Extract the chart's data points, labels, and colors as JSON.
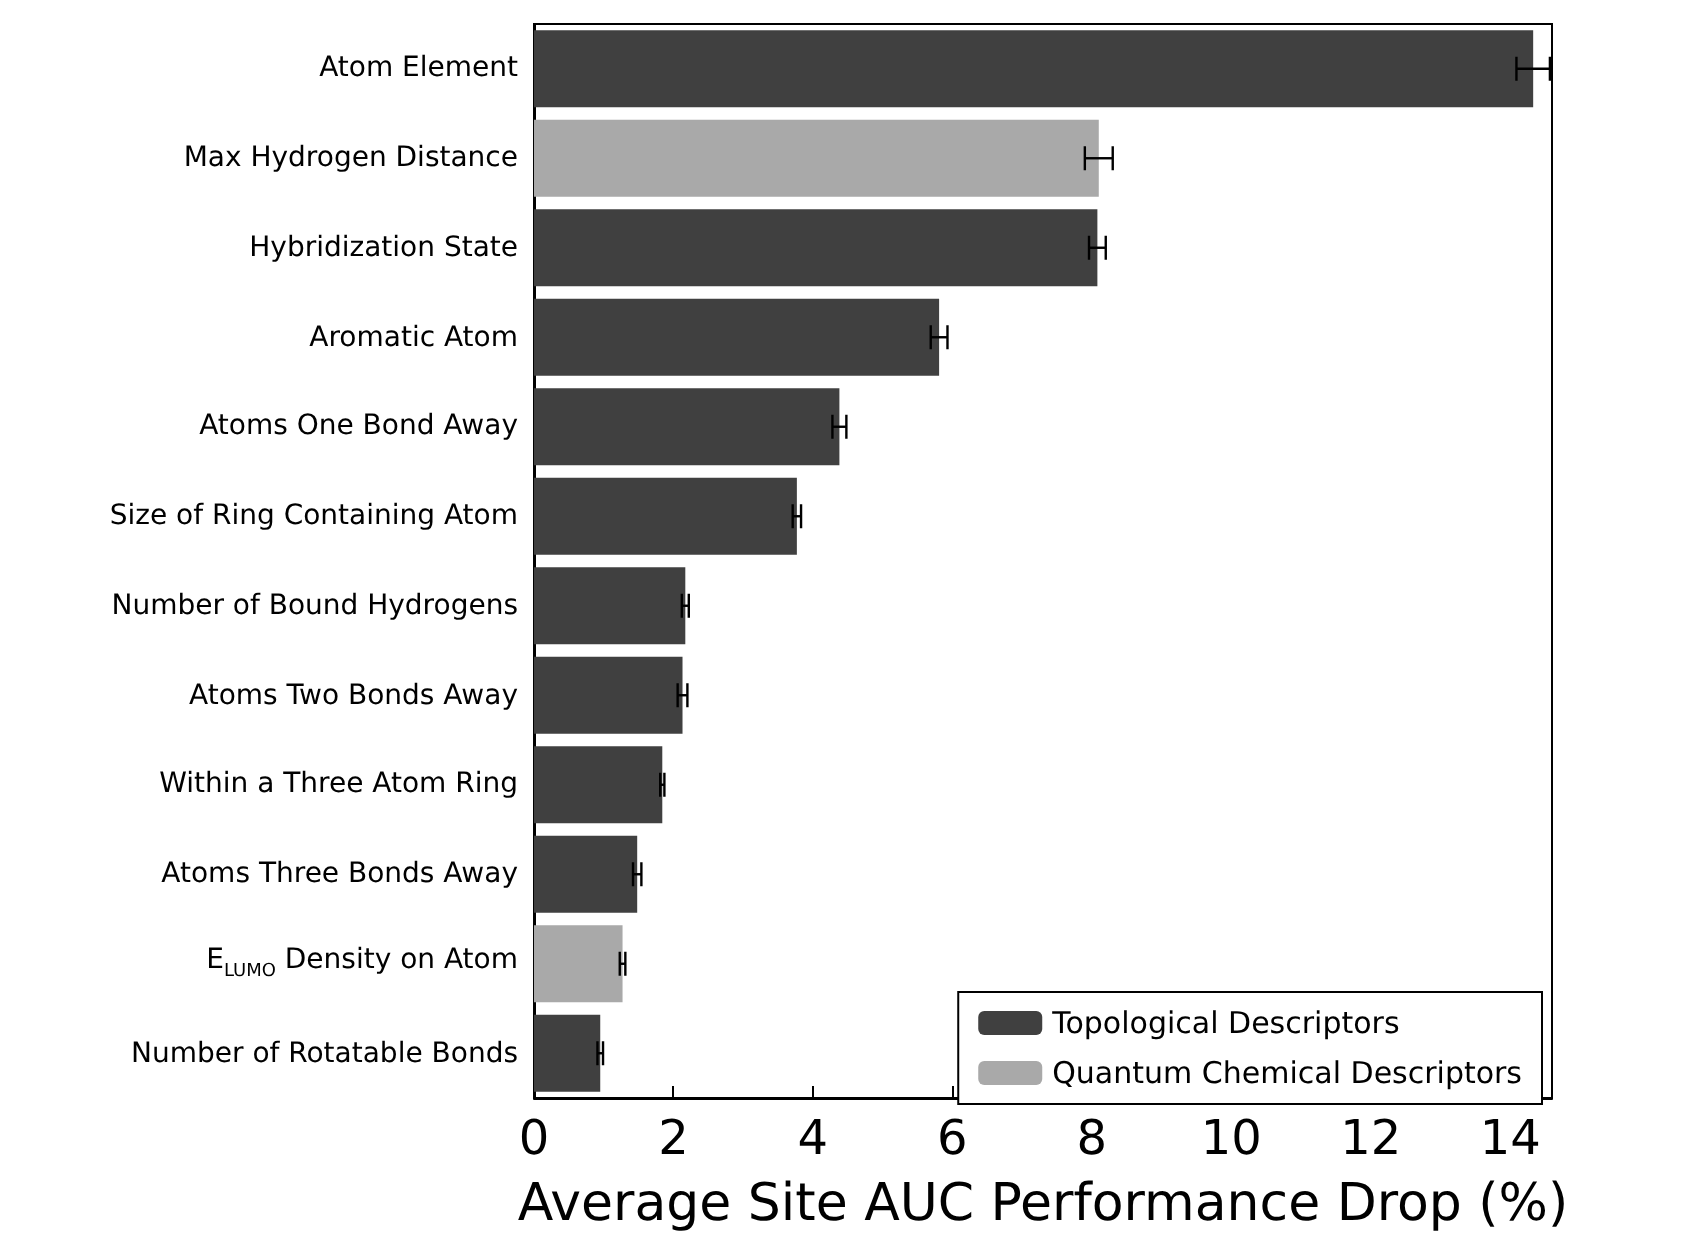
{
  "chart_data": {
    "type": "bar",
    "orientation": "horizontal",
    "stacked": true,
    "xlabel": "Average Site AUC Performance Drop (%)",
    "categories": [
      "Atom Element",
      "Max Hydrogen Distance",
      "Hybridization State",
      "Aromatic Atom",
      "Atoms One Bond Away",
      "Size of Ring Containing Atom",
      "Number of Bound Hydrogens",
      "Atoms Two Bonds Away",
      "Within a Three Atom Ring",
      "Atoms Three Bonds Away",
      "E$_{LUMO}$ Density on Atom",
      "Number of Rotatable Bonds"
    ],
    "series": [
      {
        "name": "Topological Descriptors",
        "color": "#404040",
        "values": [
          14.33,
          null,
          8.08,
          5.81,
          4.38,
          3.77,
          2.17,
          2.13,
          1.84,
          1.48,
          null,
          0.95
        ],
        "errors": [
          0.24,
          null,
          0.12,
          0.12,
          0.1,
          0.06,
          0.05,
          0.07,
          0.03,
          0.06,
          null,
          0.04
        ]
      },
      {
        "name": "Quantum Chemical Descriptors",
        "color": "#a9a9a9",
        "values": [
          null,
          8.1,
          null,
          null,
          null,
          null,
          null,
          null,
          null,
          null,
          1.27,
          null
        ],
        "errors": [
          null,
          0.2,
          null,
          null,
          null,
          null,
          null,
          null,
          null,
          null,
          0.04,
          null
        ]
      }
    ],
    "xlim": [
      0,
      14.6
    ],
    "xticks": [
      0,
      2,
      4,
      6,
      8,
      10,
      12,
      14
    ],
    "grid": false,
    "legend": "bottom right"
  }
}
